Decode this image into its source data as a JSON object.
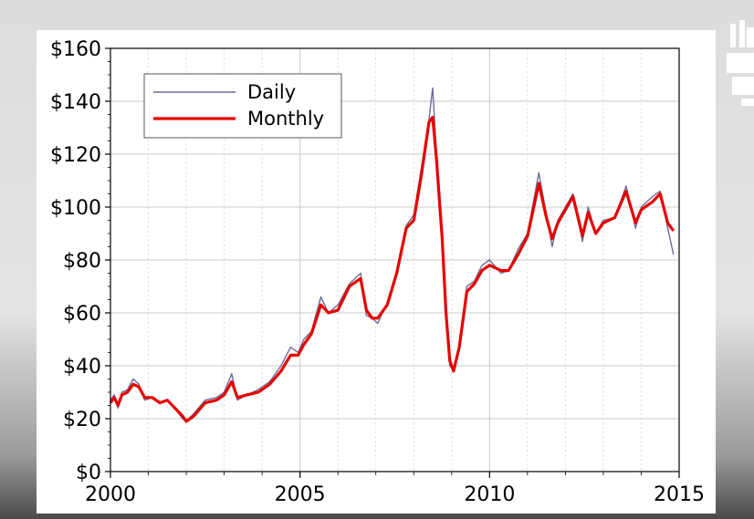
{
  "chart_data": {
    "type": "line",
    "title": "",
    "xlabel": "",
    "ylabel": "",
    "xlim": [
      2000,
      2015
    ],
    "ylim": [
      0,
      160
    ],
    "x_ticks": [
      2000,
      2005,
      2010,
      2015
    ],
    "x_tick_labels": [
      "2000",
      "2005",
      "2010",
      "2015"
    ],
    "y_ticks": [
      0,
      20,
      40,
      60,
      80,
      100,
      120,
      140,
      160
    ],
    "y_tick_labels": [
      "$0",
      "$20",
      "$40",
      "$60",
      "$80",
      "$100",
      "$120",
      "$140",
      "$160"
    ],
    "grid": true,
    "legend": {
      "position": "top-left",
      "entries": [
        "Daily",
        "Monthly"
      ]
    },
    "series": [
      {
        "name": "Daily",
        "color": "#6b6b9a",
        "x": [
          2000.0,
          2000.1,
          2000.2,
          2000.3,
          2000.45,
          2000.6,
          2000.75,
          2000.9,
          2001.1,
          2001.3,
          2001.5,
          2001.7,
          2001.9,
          2002.0,
          2002.2,
          2002.5,
          2002.8,
          2003.0,
          2003.2,
          2003.35,
          2003.6,
          2003.9,
          2004.2,
          2004.5,
          2004.75,
          2004.95,
          2005.1,
          2005.3,
          2005.55,
          2005.75,
          2006.0,
          2006.3,
          2006.6,
          2006.75,
          2006.9,
          2007.05,
          2007.3,
          2007.55,
          2007.8,
          2008.0,
          2008.2,
          2008.4,
          2008.5,
          2008.6,
          2008.75,
          2008.85,
          2008.95,
          2009.05,
          2009.2,
          2009.4,
          2009.6,
          2009.8,
          2010.0,
          2010.3,
          2010.5,
          2010.75,
          2011.0,
          2011.3,
          2011.5,
          2011.65,
          2011.8,
          2012.0,
          2012.2,
          2012.45,
          2012.6,
          2012.8,
          2013.0,
          2013.3,
          2013.6,
          2013.85,
          2014.0,
          2014.3,
          2014.5,
          2014.7,
          2014.85
        ],
        "y": [
          27,
          29,
          24,
          30,
          31,
          35,
          33,
          27,
          28,
          26,
          27,
          24,
          20,
          19,
          22,
          27,
          28,
          30,
          37,
          27,
          29,
          31,
          34,
          40,
          47,
          45,
          50,
          53,
          66,
          60,
          63,
          71,
          75,
          59,
          58,
          56,
          64,
          76,
          93,
          97,
          115,
          133,
          145,
          120,
          85,
          60,
          40,
          38,
          48,
          70,
          72,
          78,
          80,
          75,
          76,
          84,
          90,
          113,
          97,
          85,
          95,
          100,
          105,
          87,
          100,
          90,
          95,
          96,
          108,
          92,
          100,
          104,
          106,
          92,
          82
        ]
      },
      {
        "name": "Monthly",
        "color": "#e60000",
        "x": [
          2000.0,
          2000.1,
          2000.2,
          2000.3,
          2000.45,
          2000.6,
          2000.75,
          2000.9,
          2001.1,
          2001.3,
          2001.5,
          2001.7,
          2001.9,
          2002.0,
          2002.2,
          2002.5,
          2002.8,
          2003.0,
          2003.2,
          2003.35,
          2003.6,
          2003.9,
          2004.2,
          2004.5,
          2004.75,
          2004.95,
          2005.1,
          2005.3,
          2005.55,
          2005.75,
          2006.0,
          2006.3,
          2006.6,
          2006.75,
          2006.9,
          2007.05,
          2007.3,
          2007.55,
          2007.8,
          2008.0,
          2008.2,
          2008.4,
          2008.5,
          2008.6,
          2008.75,
          2008.85,
          2008.95,
          2009.05,
          2009.2,
          2009.4,
          2009.6,
          2009.8,
          2010.0,
          2010.3,
          2010.5,
          2010.75,
          2011.0,
          2011.3,
          2011.5,
          2011.65,
          2011.8,
          2012.0,
          2012.2,
          2012.45,
          2012.6,
          2012.8,
          2013.0,
          2013.3,
          2013.6,
          2013.85,
          2014.0,
          2014.3,
          2014.5,
          2014.7,
          2014.85
        ],
        "y": [
          26,
          28,
          25,
          29,
          30,
          33,
          32,
          28,
          28,
          26,
          27,
          24,
          21,
          19,
          21,
          26,
          27,
          29,
          34,
          28,
          29,
          30,
          33,
          38,
          44,
          44,
          48,
          52,
          63,
          60,
          61,
          70,
          73,
          61,
          58,
          58,
          63,
          75,
          92,
          95,
          112,
          132,
          134,
          118,
          88,
          60,
          42,
          38,
          47,
          68,
          71,
          76,
          78,
          76,
          76,
          82,
          89,
          109,
          96,
          88,
          94,
          99,
          104,
          89,
          98,
          90,
          94,
          96,
          106,
          94,
          99,
          102,
          105,
          94,
          91
        ]
      }
    ]
  }
}
